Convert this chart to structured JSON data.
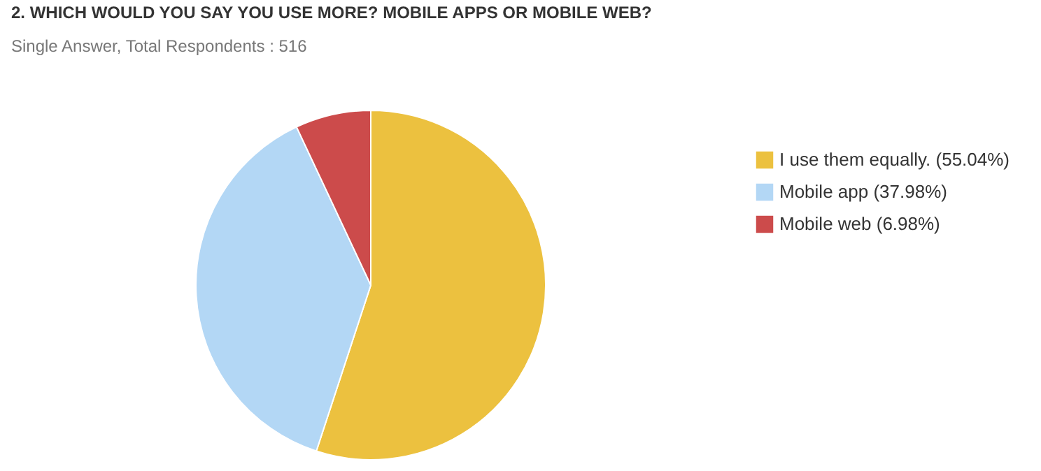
{
  "chart_data": {
    "type": "pie",
    "title": "2. WHICH WOULD YOU SAY YOU USE MORE? MOBILE APPS OR MOBILE WEB?",
    "subtitle": "Single Answer, Total Respondents : 516",
    "categories": [
      "I use them equally.",
      "Mobile app",
      "Mobile web"
    ],
    "values": [
      55.04,
      37.98,
      6.98
    ],
    "value_labels": [
      "(55.04%)",
      "(37.98%)",
      "(6.98%)"
    ],
    "colors": [
      "#ecc13f",
      "#b3d7f5",
      "#cc4b4b"
    ],
    "legend": "right"
  }
}
